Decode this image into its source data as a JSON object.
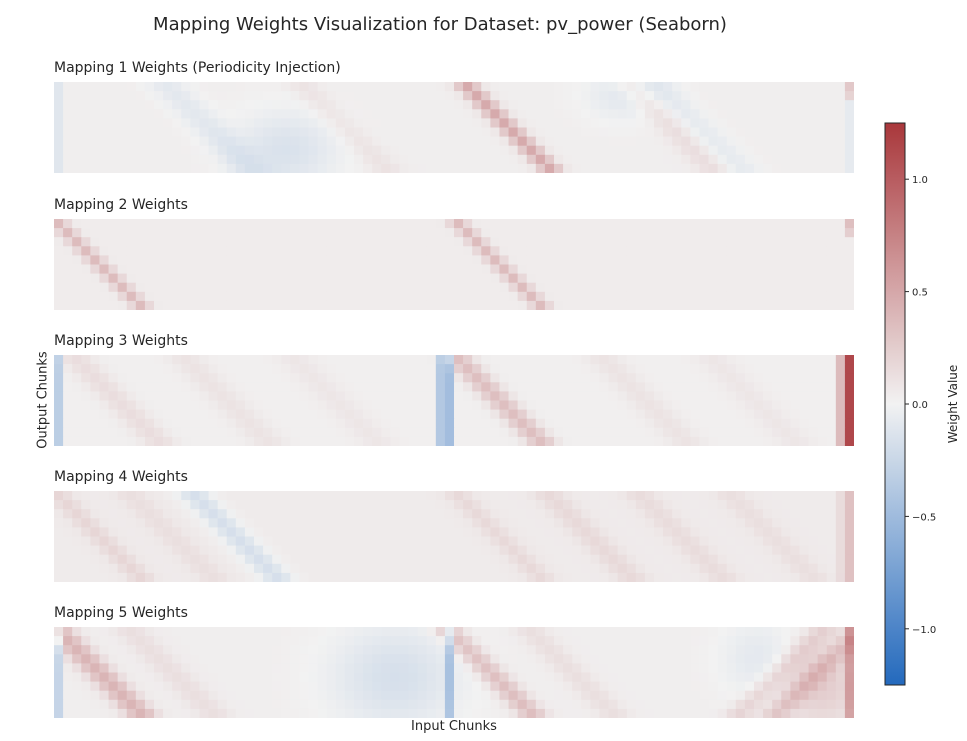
{
  "chart_data": {
    "type": "heatmap",
    "title": "Mapping Weights Visualization for Dataset: pv_power (Seaborn)",
    "xlabel": "Input Chunks",
    "ylabel": "Output Chunks",
    "colorbar": {
      "label": "Weight Value",
      "colormap": "vlag",
      "vmin": -1.25,
      "vmax": 1.25,
      "ticks": [
        1.0,
        0.5,
        0.0,
        -0.5,
        -1.0
      ],
      "tick_labels": [
        "1.0",
        "0.5",
        "0.0",
        "−0.5",
        "−1.0"
      ],
      "colors": {
        "low": "#2369bd",
        "mid": "#f2f2f2",
        "high": "#a9373b"
      }
    },
    "grid_shape": {
      "rows": 10,
      "cols": 88
    },
    "panels": [
      {
        "title": "Mapping 1 Weights (Periodicity Injection)",
        "base": 0.03,
        "features": [
          {
            "kind": "diag",
            "c0": 45,
            "slope": 1,
            "value": 0.45,
            "width": 0.9,
            "r0": 0,
            "r1": 9
          },
          {
            "kind": "diag",
            "c0": 63,
            "slope": 1,
            "value": 0.12,
            "width": 1.2
          },
          {
            "kind": "diag",
            "c0": 27,
            "slope": 1,
            "value": 0.08,
            "width": 1.2
          },
          {
            "kind": "diag",
            "c0": 12,
            "slope": 1,
            "value": -0.12,
            "width": 1.6
          },
          {
            "kind": "diag",
            "c0": 66,
            "slope": 1,
            "value": -0.1,
            "width": 1.6
          },
          {
            "kind": "blob",
            "c": 25,
            "r": 7,
            "value": -0.18,
            "sc": 4,
            "sr": 3
          },
          {
            "kind": "blob",
            "c": 62,
            "r": 1,
            "value": -0.12,
            "sc": 3,
            "sr": 2
          },
          {
            "kind": "col",
            "c": 0,
            "value": -0.14
          },
          {
            "kind": "col",
            "c": 87,
            "value": -0.1
          },
          {
            "kind": "cell",
            "c": 87,
            "r": 0,
            "value": 0.35
          },
          {
            "kind": "cell",
            "c": 87,
            "r": 1,
            "value": 0.28
          }
        ]
      },
      {
        "title": "Mapping 2 Weights",
        "base": 0.04,
        "features": [
          {
            "kind": "diag",
            "c0": 0,
            "slope": 1,
            "value": 0.32,
            "width": 0.75,
            "r0": 0,
            "r1": 9
          },
          {
            "kind": "diag",
            "c0": 44,
            "slope": 1,
            "value": 0.32,
            "width": 0.75,
            "r0": 0,
            "r1": 9
          },
          {
            "kind": "cell",
            "c": 87,
            "r": 0,
            "value": 0.3
          },
          {
            "kind": "cell",
            "c": 87,
            "r": 1,
            "value": 0.2
          }
        ]
      },
      {
        "title": "Mapping 3 Weights",
        "base": 0.02,
        "features": [
          {
            "kind": "col",
            "c": 0,
            "value": -0.35
          },
          {
            "kind": "col",
            "c": 42,
            "value": -0.4
          },
          {
            "kind": "col",
            "c": 43,
            "value": -0.5
          },
          {
            "kind": "diag",
            "c0": 44,
            "slope": 1,
            "value": 0.32,
            "width": 1.1
          },
          {
            "kind": "diag",
            "c0": 2,
            "slope": 1,
            "value": 0.12,
            "width": 1.3
          },
          {
            "kind": "diag",
            "c0": 14,
            "slope": 1,
            "value": 0.08,
            "width": 1.3
          },
          {
            "kind": "diag",
            "c0": 26,
            "slope": 1,
            "value": 0.06,
            "width": 1.3
          },
          {
            "kind": "diag",
            "c0": 60,
            "slope": 1,
            "value": 0.08,
            "width": 1.3
          },
          {
            "kind": "diag",
            "c0": 72,
            "slope": 1,
            "value": 0.06,
            "width": 1.3
          },
          {
            "kind": "col",
            "c": 86,
            "value": 0.35
          },
          {
            "kind": "col",
            "c": 87,
            "value": 1.12
          }
        ]
      },
      {
        "title": "Mapping 4 Weights",
        "base": 0.05,
        "features": [
          {
            "kind": "diag",
            "c0": 0,
            "slope": 1,
            "value": 0.14,
            "width": 1.0
          },
          {
            "kind": "diag",
            "c0": 8,
            "slope": 1,
            "value": 0.08,
            "width": 1.2
          },
          {
            "kind": "diag",
            "c0": 15,
            "slope": 1,
            "value": -0.22,
            "width": 1.3
          },
          {
            "kind": "diag",
            "c0": 44,
            "slope": 1,
            "value": 0.12,
            "width": 1.0
          },
          {
            "kind": "diag",
            "c0": 54,
            "slope": 1,
            "value": 0.12,
            "width": 1.2
          },
          {
            "kind": "diag",
            "c0": 64,
            "slope": 1,
            "value": 0.1,
            "width": 1.2
          },
          {
            "kind": "diag",
            "c0": 74,
            "slope": 1,
            "value": 0.08,
            "width": 1.2
          },
          {
            "kind": "col",
            "c": 87,
            "value": 0.28
          },
          {
            "kind": "col",
            "c": 86,
            "value": 0.1
          }
        ]
      },
      {
        "title": "Mapping 5 Weights",
        "base": 0.03,
        "features": [
          {
            "kind": "col",
            "c": 0,
            "value": -0.3
          },
          {
            "kind": "diag",
            "c0": 0,
            "slope": 1,
            "value": 0.38,
            "width": 1.2
          },
          {
            "kind": "diag",
            "c0": 8,
            "slope": 1,
            "value": 0.1,
            "width": 1.3
          },
          {
            "kind": "col",
            "c": 43,
            "value": -0.38
          },
          {
            "kind": "diag",
            "c0": 43,
            "slope": 1,
            "value": 0.32,
            "width": 1.1
          },
          {
            "kind": "diag",
            "c0": 52,
            "slope": 1,
            "value": 0.1,
            "width": 1.2
          },
          {
            "kind": "blob",
            "c": 37,
            "r": 5,
            "value": -0.2,
            "sc": 5,
            "sr": 4
          },
          {
            "kind": "blob",
            "c": 77,
            "r": 3,
            "value": -0.12,
            "sc": 3,
            "sr": 3
          },
          {
            "kind": "antidiag",
            "c0": 88,
            "value": 0.25,
            "width": 1.1
          },
          {
            "kind": "antidiag",
            "c0": 84,
            "value": 0.18,
            "width": 1.1
          },
          {
            "kind": "blob",
            "c": 84,
            "r": 6,
            "value": 0.22,
            "sc": 3,
            "sr": 3
          },
          {
            "kind": "col",
            "c": 87,
            "value": 0.42
          }
        ]
      }
    ]
  }
}
